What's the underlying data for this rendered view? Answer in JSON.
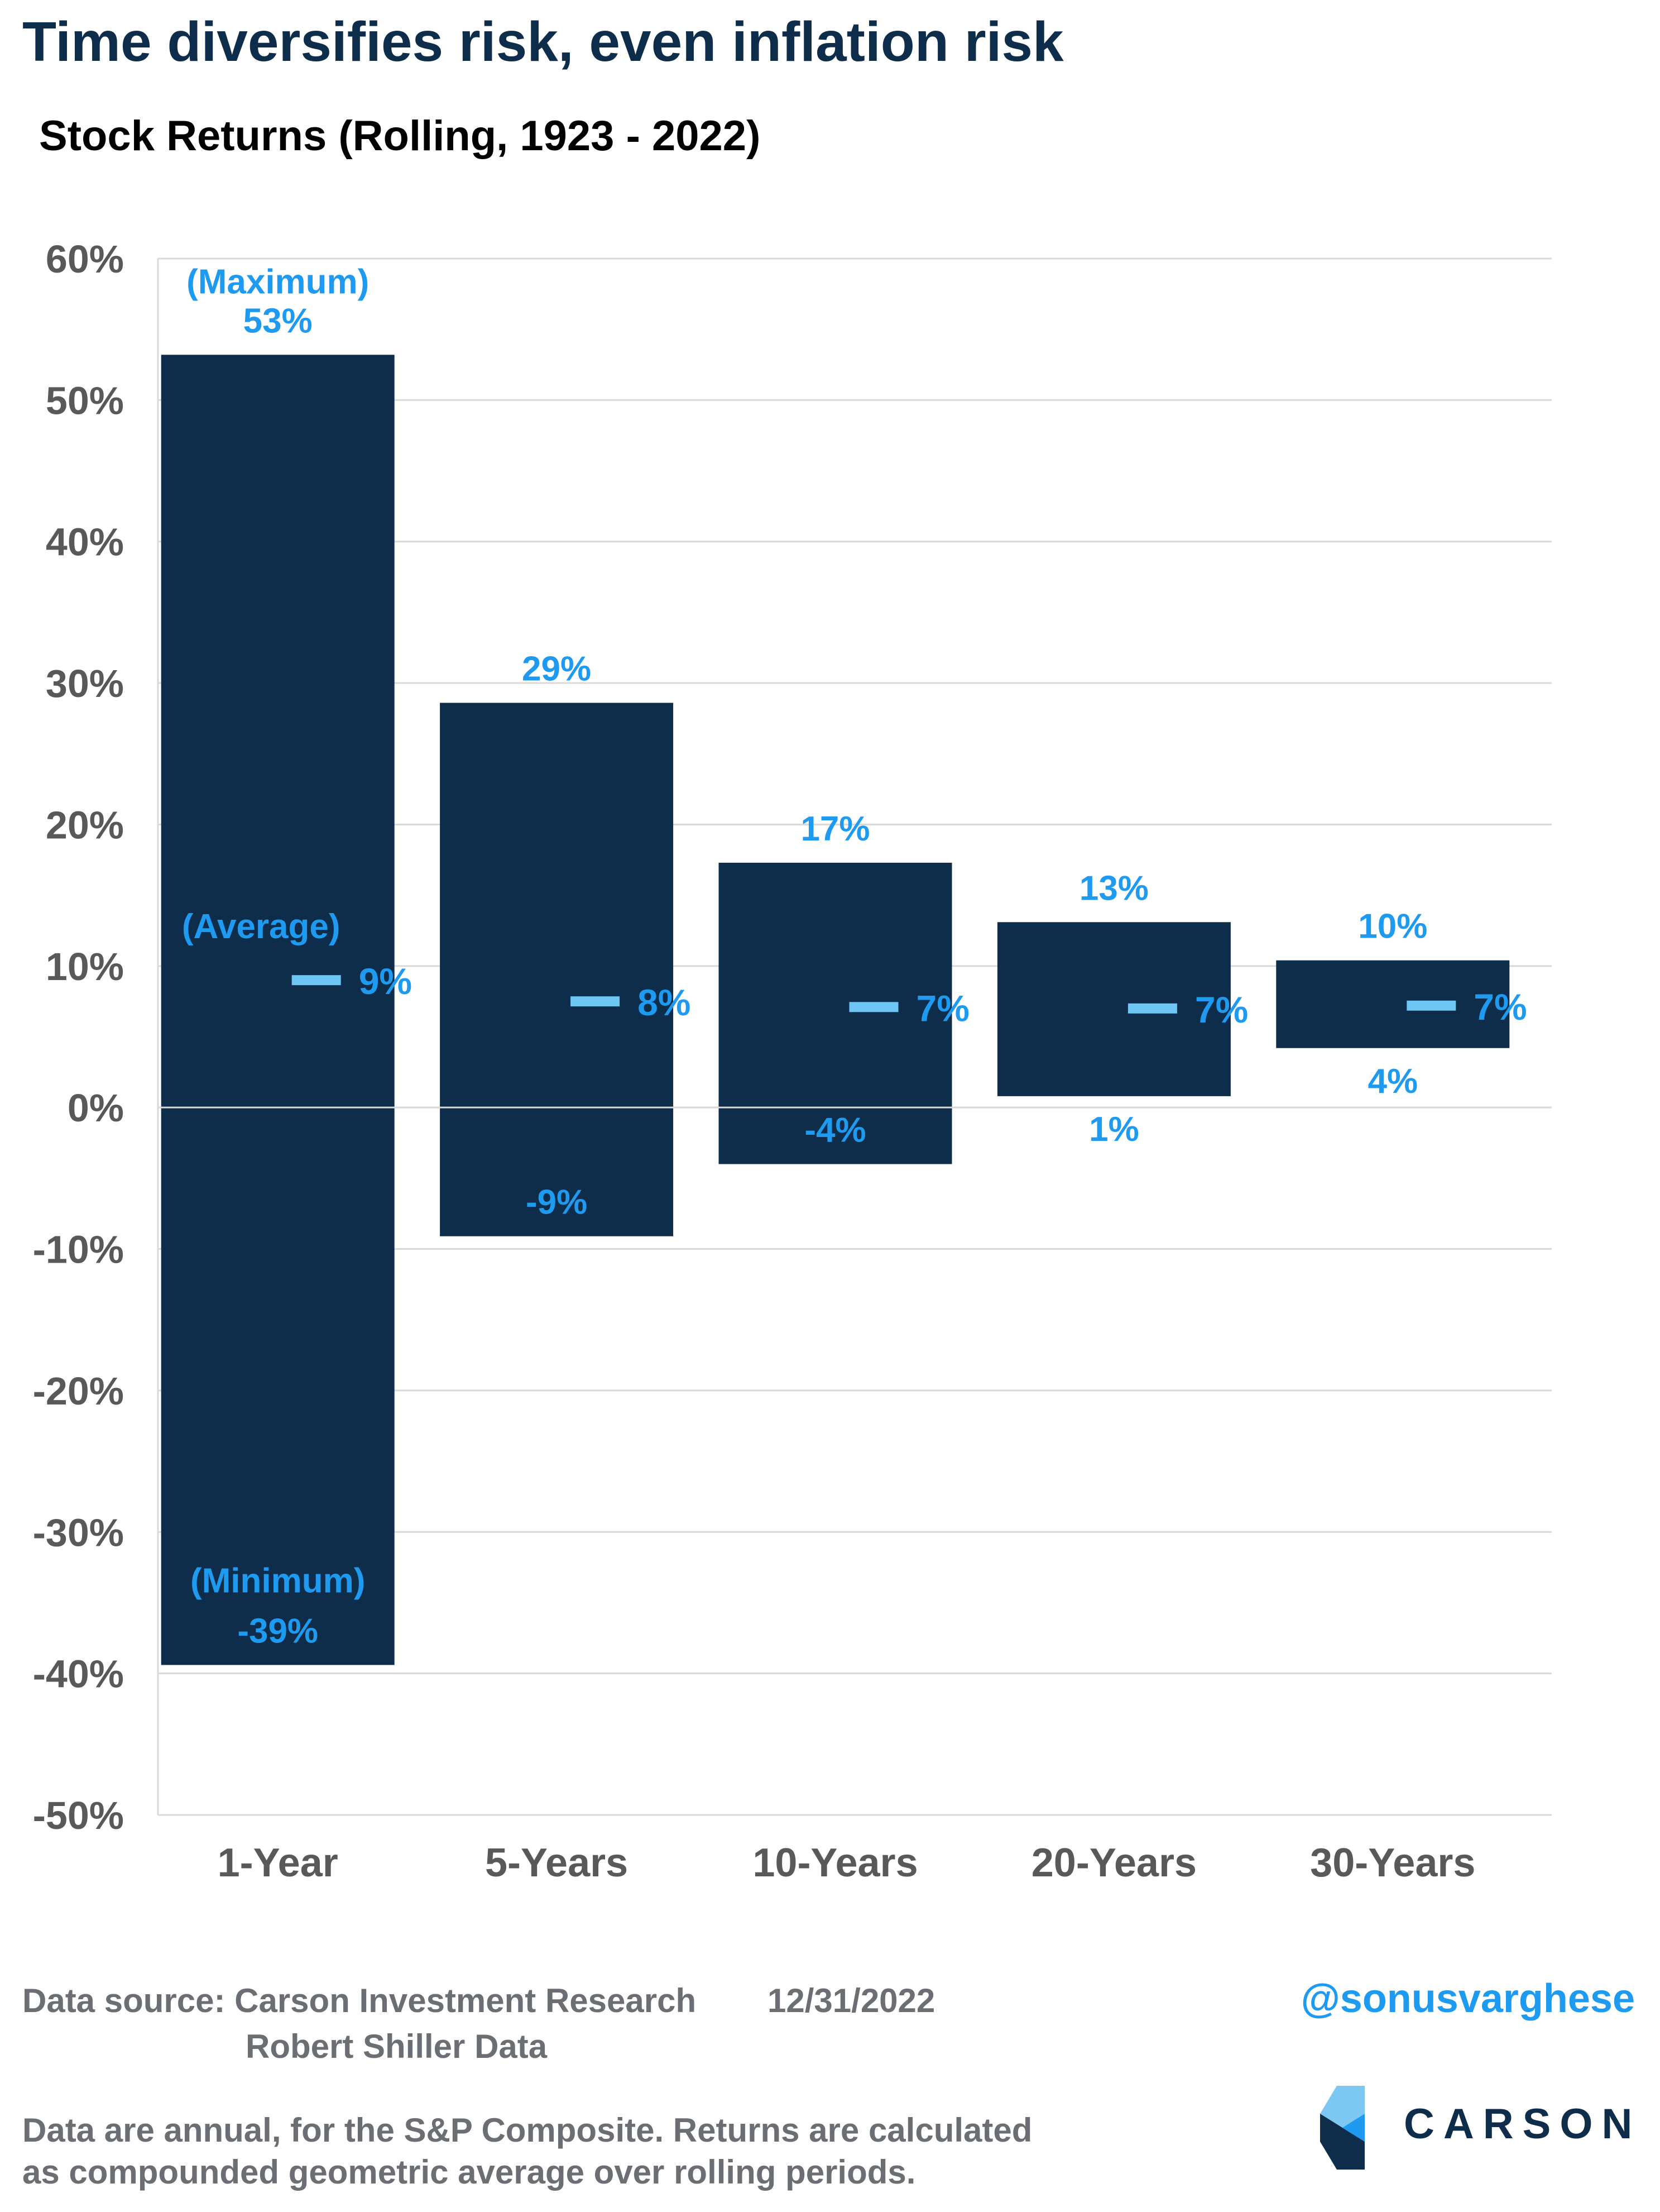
{
  "title": "Time diversifies risk, even inflation risk",
  "subtitle": "Stock Returns (Rolling, 1923 - 2022)",
  "colors": {
    "bar": "#0d2d4b",
    "label": "#1e9bf0",
    "average_marker": "#6ec6f5",
    "axis_text": "#595959",
    "grid": "#d9d9d9"
  },
  "chart_data": {
    "type": "bar",
    "subtype": "floating-range",
    "categories": [
      "1-Year",
      "5-Years",
      "10-Years",
      "20-Years",
      "30-Years"
    ],
    "series": [
      {
        "name": "Maximum",
        "values": [
          53.2,
          28.6,
          17.3,
          13.1,
          10.4
        ]
      },
      {
        "name": "Average",
        "values": [
          9.0,
          7.5,
          7.1,
          7.0,
          7.2
        ]
      },
      {
        "name": "Minimum",
        "values": [
          -39.4,
          -9.1,
          -4.0,
          0.8,
          4.2
        ]
      }
    ],
    "data_labels": {
      "max": [
        "53%",
        "29%",
        "17%",
        "13%",
        "10%"
      ],
      "avg": [
        "9%",
        "8%",
        "7%",
        "7%",
        "7%"
      ],
      "min": [
        "-39%",
        "-9%",
        "-4%",
        "1%",
        "4%"
      ]
    },
    "annotations": {
      "max": "(Maximum)",
      "avg": "(Average)",
      "min": "(Minimum)"
    },
    "yticks": [
      "60%",
      "50%",
      "40%",
      "30%",
      "20%",
      "10%",
      "0%",
      "-10%",
      "-20%",
      "-30%",
      "-40%",
      "-50%"
    ],
    "ylim": [
      -50,
      60
    ],
    "grid": true
  },
  "footer": {
    "source_label": "Data source: Carson Investment Research",
    "date": "12/31/2022",
    "source_line2": "Robert Shiller Data",
    "note_line1": "Data are annual, for the S&P Composite. Returns are calculated",
    "note_line2": "as compounded geometric average over rolling periods.",
    "handle": "@sonusvarghese",
    "logo_text": "CARSON"
  }
}
